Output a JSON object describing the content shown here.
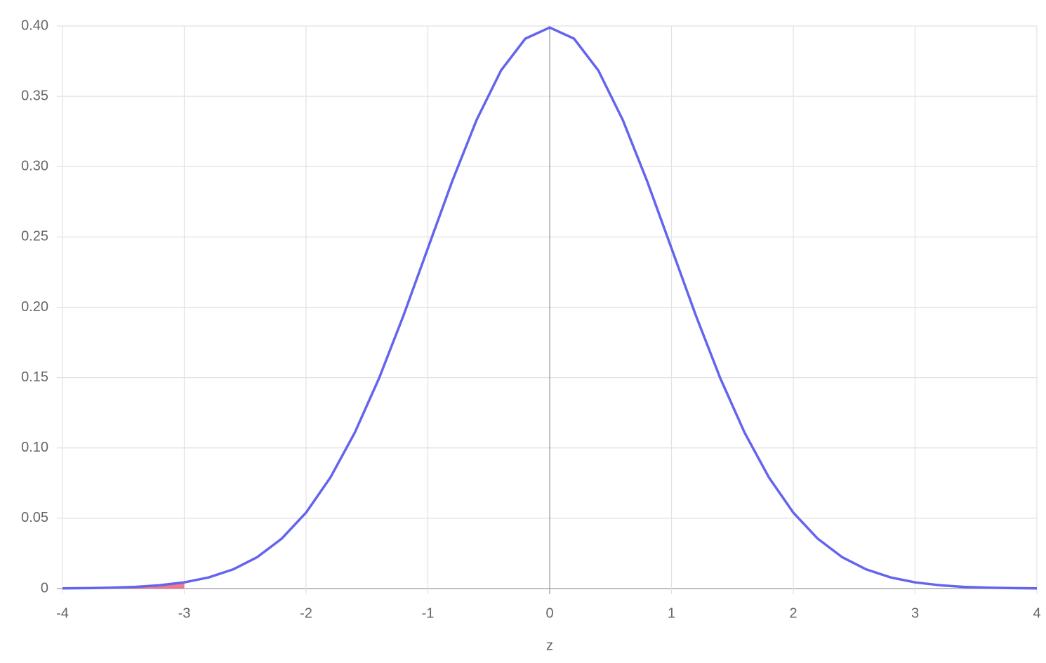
{
  "chart_data": {
    "type": "line",
    "x_label": "z",
    "series": [
      {
        "type": "area",
        "color": "#f0607a",
        "x": [
          -4,
          -3.8,
          -3.6,
          -3.4,
          -3.2,
          -3
        ],
        "values": [
          0.0001,
          0.0003,
          0.0006,
          0.0012,
          0.0024,
          0.0044
        ]
      },
      {
        "type": "line",
        "color": "#6464ee",
        "x": [
          -4,
          -3.8,
          -3.6,
          -3.4,
          -3.2,
          -3,
          -2.8,
          -2.6,
          -2.4,
          -2.2,
          -2,
          -1.8,
          -1.6,
          -1.4,
          -1.2,
          -1,
          -0.8,
          -0.6,
          -0.4,
          -0.2,
          0,
          0.2,
          0.4,
          0.6,
          0.8,
          1,
          1.2,
          1.4,
          1.6,
          1.8,
          2,
          2.2,
          2.4,
          2.6,
          2.8,
          3,
          3.2,
          3.4,
          3.6,
          3.8,
          4
        ],
        "values": [
          0.0001,
          0.0003,
          0.0006,
          0.0012,
          0.0024,
          0.0044,
          0.0079,
          0.0136,
          0.0224,
          0.0355,
          0.054,
          0.079,
          0.1109,
          0.1497,
          0.1942,
          0.242,
          0.2897,
          0.3332,
          0.3683,
          0.391,
          0.3989,
          0.391,
          0.3683,
          0.3332,
          0.2897,
          0.242,
          0.1942,
          0.1497,
          0.1109,
          0.079,
          0.054,
          0.0355,
          0.0224,
          0.0136,
          0.0079,
          0.0044,
          0.0024,
          0.0012,
          0.0006,
          0.0003,
          0.0001
        ]
      }
    ],
    "xlim": [
      -4,
      4
    ],
    "xticks": [
      -4,
      -3,
      -2,
      -1,
      0,
      1,
      2,
      3,
      4
    ],
    "ylim": [
      0,
      0.4
    ],
    "yticks": [
      0,
      {
        "value": 0.05,
        "label": "0.05"
      },
      {
        "value": 0.1,
        "label": "0.10"
      },
      {
        "value": 0.15,
        "label": "0.15"
      },
      {
        "value": 0.2,
        "label": "0.20"
      },
      {
        "value": 0.25,
        "label": "0.25"
      },
      {
        "value": 0.3,
        "label": "0.30"
      },
      {
        "value": 0.35,
        "label": "0.35"
      },
      {
        "value": 0.4,
        "label": "0.40"
      }
    ],
    "grid": true
  }
}
